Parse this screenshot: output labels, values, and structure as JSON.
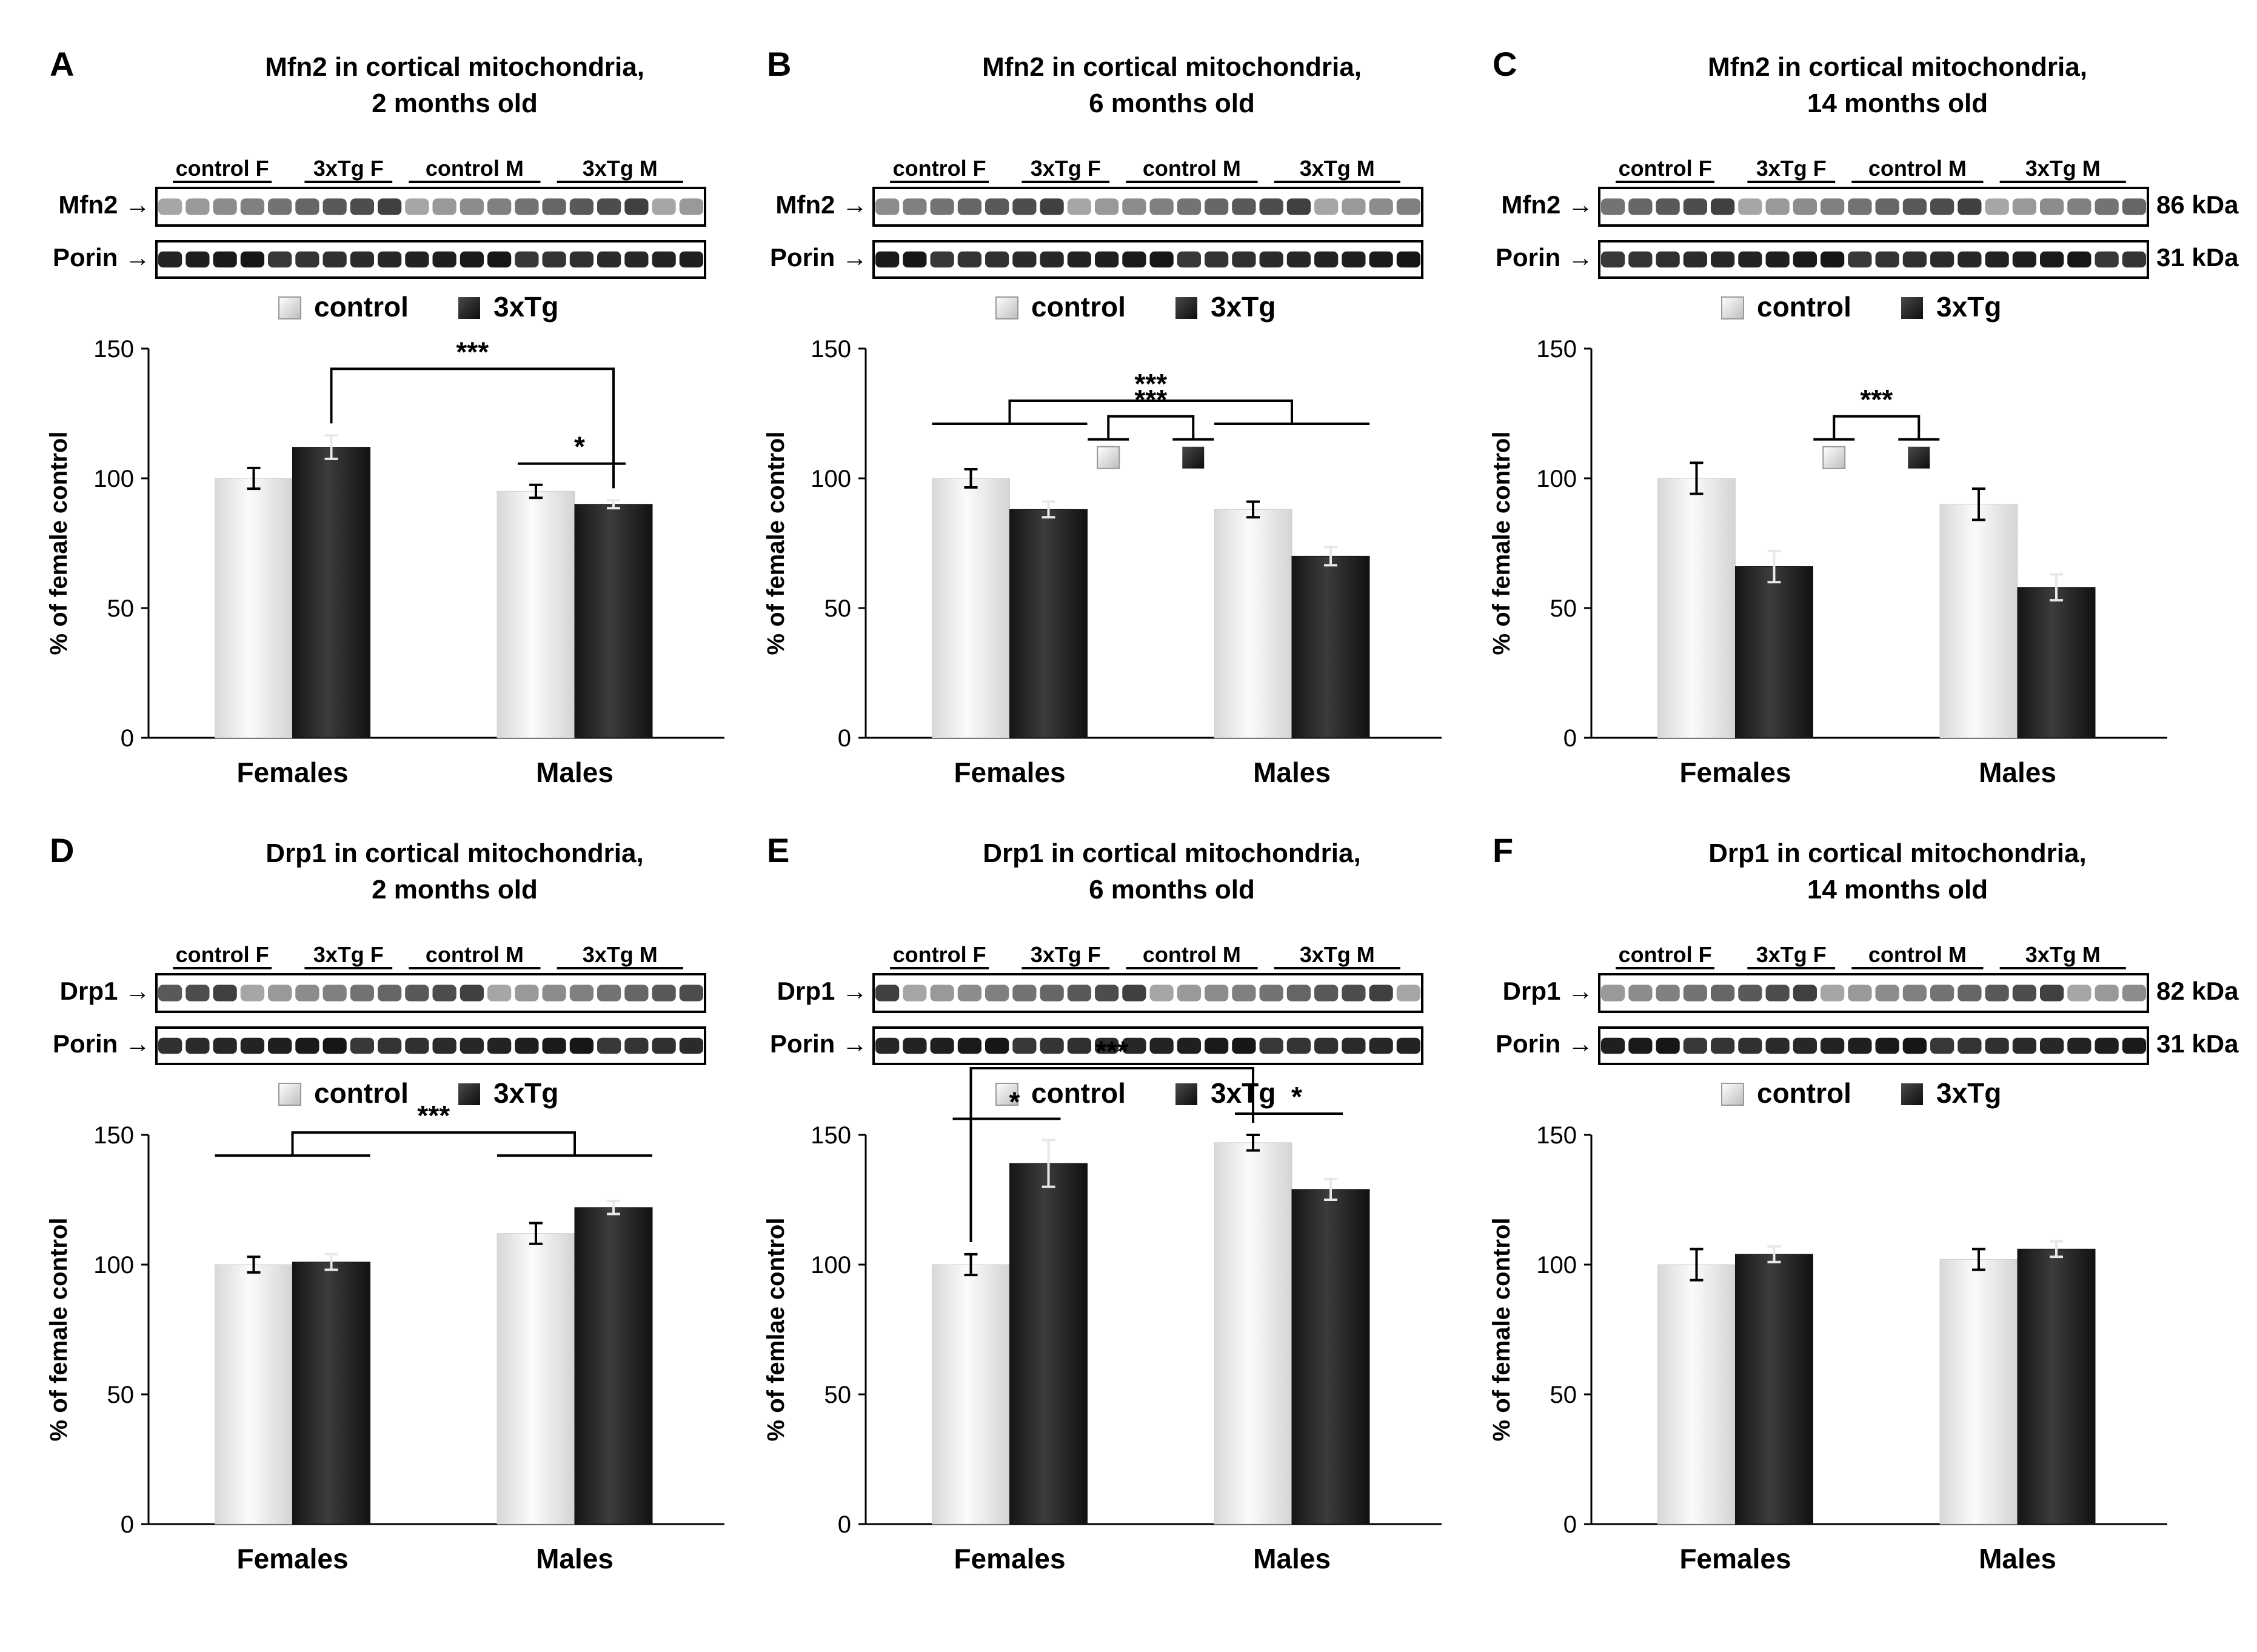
{
  "figure_caption_visible": false,
  "chart_data": [
    {
      "id": "A",
      "letter": "A",
      "type": "bar",
      "title": [
        "Mfn2 in cortical mitochondria,",
        "2 months old"
      ],
      "blot": {
        "groups": [
          "control F",
          "3xTg F",
          "control M",
          "3xTg M"
        ],
        "rows": [
          {
            "label": "Mfn2 →",
            "kda": ""
          },
          {
            "label": "Porin →",
            "kda": ""
          }
        ]
      },
      "legend": [
        "control",
        "3xTg"
      ],
      "categories": [
        "Females",
        "Males"
      ],
      "series": [
        {
          "name": "control",
          "values": [
            100,
            95
          ],
          "errors": [
            4,
            2.5
          ]
        },
        {
          "name": "3xTg",
          "values": [
            112,
            90
          ],
          "errors": [
            4.5,
            1.5
          ]
        }
      ],
      "ylabel": "% of female control",
      "ylim": [
        0,
        150
      ],
      "yticks": [
        0,
        50,
        100,
        150
      ],
      "annotations": [
        {
          "text": "***",
          "kind": "bracket",
          "between": [
            "Females.3xTg",
            "Males.3xTg"
          ]
        },
        {
          "text": "*",
          "kind": "line",
          "between": [
            "Males.control",
            "Males.3xTg"
          ]
        }
      ]
    },
    {
      "id": "B",
      "letter": "B",
      "type": "bar",
      "title": [
        "Mfn2 in cortical mitochondria,",
        "6 months old"
      ],
      "blot": {
        "groups": [
          "control F",
          "3xTg F",
          "control M",
          "3xTg M"
        ],
        "rows": [
          {
            "label": "Mfn2 →",
            "kda": ""
          },
          {
            "label": "Porin →",
            "kda": ""
          }
        ]
      },
      "legend": [
        "control",
        "3xTg"
      ],
      "categories": [
        "Females",
        "Males"
      ],
      "series": [
        {
          "name": "control",
          "values": [
            100,
            88
          ],
          "errors": [
            3.5,
            3
          ]
        },
        {
          "name": "3xTg",
          "values": [
            88,
            70
          ],
          "errors": [
            3,
            3.5
          ]
        }
      ],
      "ylabel": "% of female control",
      "ylim": [
        0,
        150
      ],
      "yticks": [
        0,
        50,
        100,
        150
      ],
      "annotations": [
        {
          "text": "***",
          "kind": "group-bracket",
          "between": [
            "Females",
            "Males"
          ]
        },
        {
          "text": "***",
          "kind": "genotype-bracket",
          "between": [
            "control",
            "3xTg"
          ]
        }
      ]
    },
    {
      "id": "C",
      "letter": "C",
      "type": "bar",
      "title": [
        "Mfn2 in cortical mitochondria,",
        "14 months old"
      ],
      "blot": {
        "groups": [
          "control F",
          "3xTg F",
          "control M",
          "3xTg M"
        ],
        "rows": [
          {
            "label": "Mfn2 →",
            "kda": "86 kDa"
          },
          {
            "label": "Porin →",
            "kda": "31 kDa"
          }
        ]
      },
      "legend": [
        "control",
        "3xTg"
      ],
      "categories": [
        "Females",
        "Males"
      ],
      "series": [
        {
          "name": "control",
          "values": [
            100,
            90
          ],
          "errors": [
            6,
            6
          ]
        },
        {
          "name": "3xTg",
          "values": [
            66,
            58
          ],
          "errors": [
            6,
            5
          ]
        }
      ],
      "ylabel": "% of female control",
      "ylim": [
        0,
        150
      ],
      "yticks": [
        0,
        50,
        100,
        150
      ],
      "annotations": [
        {
          "text": "***",
          "kind": "genotype-bracket",
          "between": [
            "control",
            "3xTg"
          ]
        }
      ]
    },
    {
      "id": "D",
      "letter": "D",
      "type": "bar",
      "title": [
        "Drp1 in cortical mitochondria,",
        "2 months old"
      ],
      "blot": {
        "groups": [
          "control F",
          "3xTg F",
          "control M",
          "3xTg M"
        ],
        "rows": [
          {
            "label": "Drp1 →",
            "kda": ""
          },
          {
            "label": "Porin →",
            "kda": ""
          }
        ]
      },
      "legend": [
        "control",
        "3xTg"
      ],
      "categories": [
        "Females",
        "Males"
      ],
      "series": [
        {
          "name": "control",
          "values": [
            100,
            112
          ],
          "errors": [
            3,
            4
          ]
        },
        {
          "name": "3xTg",
          "values": [
            101,
            122
          ],
          "errors": [
            3,
            2.5
          ]
        }
      ],
      "ylabel": "% of female control",
      "ylim": [
        0,
        150
      ],
      "yticks": [
        0,
        50,
        100,
        150
      ],
      "annotations": [
        {
          "text": "***",
          "kind": "group-bracket",
          "between": [
            "Females",
            "Males"
          ]
        }
      ]
    },
    {
      "id": "E",
      "letter": "E",
      "type": "bar",
      "title": [
        "Drp1 in cortical mitochondria,",
        "6 months old"
      ],
      "blot": {
        "groups": [
          "control F",
          "3xTg F",
          "control M",
          "3xTg M"
        ],
        "rows": [
          {
            "label": "Drp1 →",
            "kda": ""
          },
          {
            "label": "Porin →",
            "kda": ""
          }
        ]
      },
      "legend": [
        "control",
        "3xTg"
      ],
      "categories": [
        "Females",
        "Males"
      ],
      "series": [
        {
          "name": "control",
          "values": [
            100,
            147
          ],
          "errors": [
            4,
            3
          ]
        },
        {
          "name": "3xTg",
          "values": [
            139,
            129
          ],
          "errors": [
            9,
            4
          ]
        }
      ],
      "ylabel": "% of femlae control",
      "ylim": [
        0,
        150
      ],
      "yticks": [
        0,
        50,
        100,
        150
      ],
      "annotations": [
        {
          "text": "***",
          "kind": "bracket",
          "between": [
            "Females.control",
            "Males.control"
          ]
        },
        {
          "text": "*",
          "kind": "line",
          "between": [
            "Females.control",
            "Females.3xTg"
          ]
        },
        {
          "text": "*",
          "kind": "line",
          "between": [
            "Males.control",
            "Males.3xTg"
          ]
        }
      ]
    },
    {
      "id": "F",
      "letter": "F",
      "type": "bar",
      "title": [
        "Drp1 in cortical mitochondria,",
        "14 months old"
      ],
      "blot": {
        "groups": [
          "control F",
          "3xTg F",
          "control M",
          "3xTg M"
        ],
        "rows": [
          {
            "label": "Drp1 →",
            "kda": "82 kDa"
          },
          {
            "label": "Porin →",
            "kda": "31 kDa"
          }
        ]
      },
      "legend": [
        "control",
        "3xTg"
      ],
      "categories": [
        "Females",
        "Males"
      ],
      "series": [
        {
          "name": "control",
          "values": [
            100,
            102
          ],
          "errors": [
            6,
            4
          ]
        },
        {
          "name": "3xTg",
          "values": [
            104,
            106
          ],
          "errors": [
            3,
            3
          ]
        }
      ],
      "ylabel": "% of female control",
      "ylim": [
        0,
        150
      ],
      "yticks": [
        0,
        50,
        100,
        150
      ],
      "annotations": []
    }
  ],
  "colors": {
    "control_light": "#f4f4f4",
    "control_dark": "#cfcfcf",
    "tg_light": "#3a3a3a",
    "tg_dark": "#1a1a1a",
    "axis": "#000000",
    "band_dark": "#1c1c1c",
    "band_light": "#bcbcbc"
  }
}
